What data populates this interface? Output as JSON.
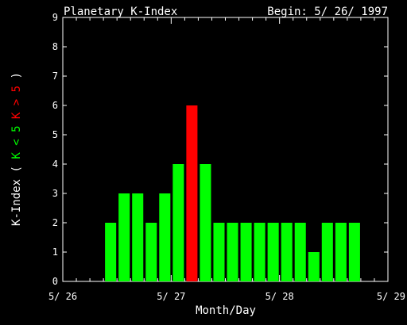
{
  "chart_data": {
    "type": "bar",
    "title": "Planetary K-Index",
    "begin_label": "Begin: 5/ 26/ 1997",
    "xlabel": "Month/Day",
    "ylabel": {
      "prefix": "K-Index",
      "open": "(",
      "green_part": "K < 5",
      "red_part": "K > 5",
      "close": ")"
    },
    "ylim": [
      0,
      9
    ],
    "yticks": [
      "0",
      "1",
      "2",
      "3",
      "4",
      "5",
      "6",
      "7",
      "8",
      "9"
    ],
    "xticks": [
      "5/ 26",
      "5/ 27",
      "5/ 28",
      "5/ 29"
    ],
    "bins_per_day": 8,
    "days": 3,
    "values": [
      0,
      0,
      0,
      2,
      3,
      3,
      2,
      3,
      4,
      6,
      4,
      2,
      2,
      2,
      2,
      2,
      2,
      2,
      1,
      2,
      2,
      2,
      0,
      0
    ],
    "colors": {
      "low": "#00ff00",
      "high": "#ff0000",
      "axis": "#ffffff",
      "background": "#000000"
    },
    "threshold": 5
  }
}
